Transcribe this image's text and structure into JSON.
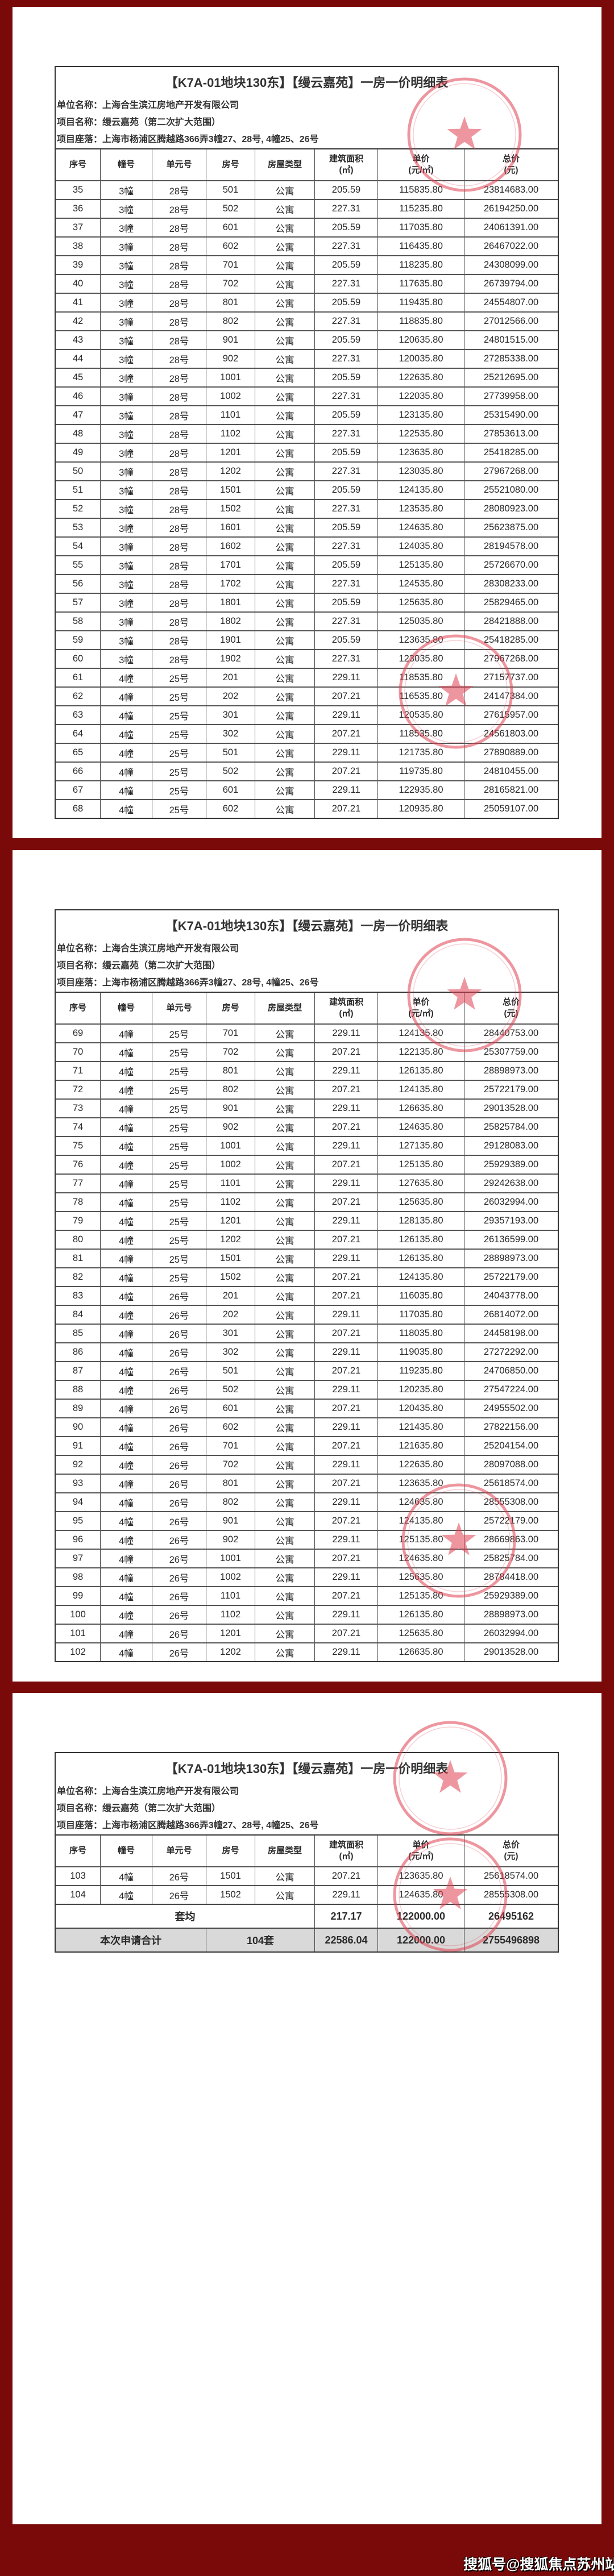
{
  "document": {
    "title": "【K7A-01地块130东】【缦云嘉苑】一房一价明细表",
    "company": "单位名称：上海合生滨江房地产开发有限公司",
    "project": "项目名称：缦云嘉苑（第二次扩大范围）",
    "location": "项目座落：上海市杨浦区腾越路366弄3幢27、28号, 4幢25、26号",
    "headers": [
      "序号",
      "幢号",
      "单元号",
      "房号",
      "房屋类型",
      "建筑面积",
      "单价",
      "总价"
    ],
    "header_units": [
      "",
      "",
      "",
      "",
      "",
      "(㎡)",
      "(元/㎡)",
      "(元)"
    ]
  },
  "pages": [
    {
      "rows": [
        [
          "35",
          "3幢",
          "28号",
          "501",
          "公寓",
          "205.59",
          "115835.80",
          "23814683.00"
        ],
        [
          "36",
          "3幢",
          "28号",
          "502",
          "公寓",
          "227.31",
          "115235.80",
          "26194250.00"
        ],
        [
          "37",
          "3幢",
          "28号",
          "601",
          "公寓",
          "205.59",
          "117035.80",
          "24061391.00"
        ],
        [
          "38",
          "3幢",
          "28号",
          "602",
          "公寓",
          "227.31",
          "116435.80",
          "26467022.00"
        ],
        [
          "39",
          "3幢",
          "28号",
          "701",
          "公寓",
          "205.59",
          "118235.80",
          "24308099.00"
        ],
        [
          "40",
          "3幢",
          "28号",
          "702",
          "公寓",
          "227.31",
          "117635.80",
          "26739794.00"
        ],
        [
          "41",
          "3幢",
          "28号",
          "801",
          "公寓",
          "205.59",
          "119435.80",
          "24554807.00"
        ],
        [
          "42",
          "3幢",
          "28号",
          "802",
          "公寓",
          "227.31",
          "118835.80",
          "27012566.00"
        ],
        [
          "43",
          "3幢",
          "28号",
          "901",
          "公寓",
          "205.59",
          "120635.80",
          "24801515.00"
        ],
        [
          "44",
          "3幢",
          "28号",
          "902",
          "公寓",
          "227.31",
          "120035.80",
          "27285338.00"
        ],
        [
          "45",
          "3幢",
          "28号",
          "1001",
          "公寓",
          "205.59",
          "122635.80",
          "25212695.00"
        ],
        [
          "46",
          "3幢",
          "28号",
          "1002",
          "公寓",
          "227.31",
          "122035.80",
          "27739958.00"
        ],
        [
          "47",
          "3幢",
          "28号",
          "1101",
          "公寓",
          "205.59",
          "123135.80",
          "25315490.00"
        ],
        [
          "48",
          "3幢",
          "28号",
          "1102",
          "公寓",
          "227.31",
          "122535.80",
          "27853613.00"
        ],
        [
          "49",
          "3幢",
          "28号",
          "1201",
          "公寓",
          "205.59",
          "123635.80",
          "25418285.00"
        ],
        [
          "50",
          "3幢",
          "28号",
          "1202",
          "公寓",
          "227.31",
          "123035.80",
          "27967268.00"
        ],
        [
          "51",
          "3幢",
          "28号",
          "1501",
          "公寓",
          "205.59",
          "124135.80",
          "25521080.00"
        ],
        [
          "52",
          "3幢",
          "28号",
          "1502",
          "公寓",
          "227.31",
          "123535.80",
          "28080923.00"
        ],
        [
          "53",
          "3幢",
          "28号",
          "1601",
          "公寓",
          "205.59",
          "124635.80",
          "25623875.00"
        ],
        [
          "54",
          "3幢",
          "28号",
          "1602",
          "公寓",
          "227.31",
          "124035.80",
          "28194578.00"
        ],
        [
          "55",
          "3幢",
          "28号",
          "1701",
          "公寓",
          "205.59",
          "125135.80",
          "25726670.00"
        ],
        [
          "56",
          "3幢",
          "28号",
          "1702",
          "公寓",
          "227.31",
          "124535.80",
          "28308233.00"
        ],
        [
          "57",
          "3幢",
          "28号",
          "1801",
          "公寓",
          "205.59",
          "125635.80",
          "25829465.00"
        ],
        [
          "58",
          "3幢",
          "28号",
          "1802",
          "公寓",
          "227.31",
          "125035.80",
          "28421888.00"
        ],
        [
          "59",
          "3幢",
          "28号",
          "1901",
          "公寓",
          "205.59",
          "123635.80",
          "25418285.00"
        ],
        [
          "60",
          "3幢",
          "28号",
          "1902",
          "公寓",
          "227.31",
          "123035.80",
          "27967268.00"
        ],
        [
          "61",
          "4幢",
          "25号",
          "201",
          "公寓",
          "229.11",
          "118535.80",
          "27157737.00"
        ],
        [
          "62",
          "4幢",
          "25号",
          "202",
          "公寓",
          "207.21",
          "116535.80",
          "24147384.00"
        ],
        [
          "63",
          "4幢",
          "25号",
          "301",
          "公寓",
          "229.11",
          "120535.80",
          "27615957.00"
        ],
        [
          "64",
          "4幢",
          "25号",
          "302",
          "公寓",
          "207.21",
          "118535.80",
          "24561803.00"
        ],
        [
          "65",
          "4幢",
          "25号",
          "501",
          "公寓",
          "229.11",
          "121735.80",
          "27890889.00"
        ],
        [
          "66",
          "4幢",
          "25号",
          "502",
          "公寓",
          "207.21",
          "119735.80",
          "24810455.00"
        ],
        [
          "67",
          "4幢",
          "25号",
          "601",
          "公寓",
          "229.11",
          "122935.80",
          "28165821.00"
        ],
        [
          "68",
          "4幢",
          "25号",
          "602",
          "公寓",
          "207.21",
          "120935.80",
          "25059107.00"
        ]
      ]
    },
    {
      "rows": [
        [
          "69",
          "4幢",
          "25号",
          "701",
          "公寓",
          "229.11",
          "124135.80",
          "28440753.00"
        ],
        [
          "70",
          "4幢",
          "25号",
          "702",
          "公寓",
          "207.21",
          "122135.80",
          "25307759.00"
        ],
        [
          "71",
          "4幢",
          "25号",
          "801",
          "公寓",
          "229.11",
          "126135.80",
          "28898973.00"
        ],
        [
          "72",
          "4幢",
          "25号",
          "802",
          "公寓",
          "207.21",
          "124135.80",
          "25722179.00"
        ],
        [
          "73",
          "4幢",
          "25号",
          "901",
          "公寓",
          "229.11",
          "126635.80",
          "29013528.00"
        ],
        [
          "74",
          "4幢",
          "25号",
          "902",
          "公寓",
          "207.21",
          "124635.80",
          "25825784.00"
        ],
        [
          "75",
          "4幢",
          "25号",
          "1001",
          "公寓",
          "229.11",
          "127135.80",
          "29128083.00"
        ],
        [
          "76",
          "4幢",
          "25号",
          "1002",
          "公寓",
          "207.21",
          "125135.80",
          "25929389.00"
        ],
        [
          "77",
          "4幢",
          "25号",
          "1101",
          "公寓",
          "229.11",
          "127635.80",
          "29242638.00"
        ],
        [
          "78",
          "4幢",
          "25号",
          "1102",
          "公寓",
          "207.21",
          "125635.80",
          "26032994.00"
        ],
        [
          "79",
          "4幢",
          "25号",
          "1201",
          "公寓",
          "229.11",
          "128135.80",
          "29357193.00"
        ],
        [
          "80",
          "4幢",
          "25号",
          "1202",
          "公寓",
          "207.21",
          "126135.80",
          "26136599.00"
        ],
        [
          "81",
          "4幢",
          "25号",
          "1501",
          "公寓",
          "229.11",
          "126135.80",
          "28898973.00"
        ],
        [
          "82",
          "4幢",
          "25号",
          "1502",
          "公寓",
          "207.21",
          "124135.80",
          "25722179.00"
        ],
        [
          "83",
          "4幢",
          "26号",
          "201",
          "公寓",
          "207.21",
          "116035.80",
          "24043778.00"
        ],
        [
          "84",
          "4幢",
          "26号",
          "202",
          "公寓",
          "229.11",
          "117035.80",
          "26814072.00"
        ],
        [
          "85",
          "4幢",
          "26号",
          "301",
          "公寓",
          "207.21",
          "118035.80",
          "24458198.00"
        ],
        [
          "86",
          "4幢",
          "26号",
          "302",
          "公寓",
          "229.11",
          "119035.80",
          "27272292.00"
        ],
        [
          "87",
          "4幢",
          "26号",
          "501",
          "公寓",
          "207.21",
          "119235.80",
          "24706850.00"
        ],
        [
          "88",
          "4幢",
          "26号",
          "502",
          "公寓",
          "229.11",
          "120235.80",
          "27547224.00"
        ],
        [
          "89",
          "4幢",
          "26号",
          "601",
          "公寓",
          "207.21",
          "120435.80",
          "24955502.00"
        ],
        [
          "90",
          "4幢",
          "26号",
          "602",
          "公寓",
          "229.11",
          "121435.80",
          "27822156.00"
        ],
        [
          "91",
          "4幢",
          "26号",
          "701",
          "公寓",
          "207.21",
          "121635.80",
          "25204154.00"
        ],
        [
          "92",
          "4幢",
          "26号",
          "702",
          "公寓",
          "229.11",
          "122635.80",
          "28097088.00"
        ],
        [
          "93",
          "4幢",
          "26号",
          "801",
          "公寓",
          "207.21",
          "123635.80",
          "25618574.00"
        ],
        [
          "94",
          "4幢",
          "26号",
          "802",
          "公寓",
          "229.11",
          "124635.80",
          "28555308.00"
        ],
        [
          "95",
          "4幢",
          "26号",
          "901",
          "公寓",
          "207.21",
          "124135.80",
          "25722179.00"
        ],
        [
          "96",
          "4幢",
          "26号",
          "902",
          "公寓",
          "229.11",
          "125135.80",
          "28669863.00"
        ],
        [
          "97",
          "4幢",
          "26号",
          "1001",
          "公寓",
          "207.21",
          "124635.80",
          "25825784.00"
        ],
        [
          "98",
          "4幢",
          "26号",
          "1002",
          "公寓",
          "229.11",
          "125635.80",
          "28784418.00"
        ],
        [
          "99",
          "4幢",
          "26号",
          "1101",
          "公寓",
          "207.21",
          "125135.80",
          "25929389.00"
        ],
        [
          "100",
          "4幢",
          "26号",
          "1102",
          "公寓",
          "229.11",
          "126135.80",
          "28898973.00"
        ],
        [
          "101",
          "4幢",
          "26号",
          "1201",
          "公寓",
          "207.21",
          "125635.80",
          "26032994.00"
        ],
        [
          "102",
          "4幢",
          "26号",
          "1202",
          "公寓",
          "229.11",
          "126635.80",
          "29013528.00"
        ]
      ]
    },
    {
      "rows": [
        [
          "103",
          "4幢",
          "26号",
          "1501",
          "公寓",
          "207.21",
          "123635.80",
          "25618574.00"
        ],
        [
          "104",
          "4幢",
          "26号",
          "1502",
          "公寓",
          "229.11",
          "124635.80",
          "28555308.00"
        ]
      ]
    }
  ],
  "summary": {
    "average": {
      "label": "套均",
      "area": "217.17",
      "unit_price": "122000.00",
      "total": "26495162"
    },
    "total": {
      "label": "本次申请合计",
      "count": "104套",
      "area": "22586.04",
      "unit_price": "122000.00",
      "total": "2755496898"
    }
  },
  "stamp_color": "#e04050",
  "background_color": "#7a0a0a",
  "watermark": "搜狐号@搜狐焦点苏州站"
}
